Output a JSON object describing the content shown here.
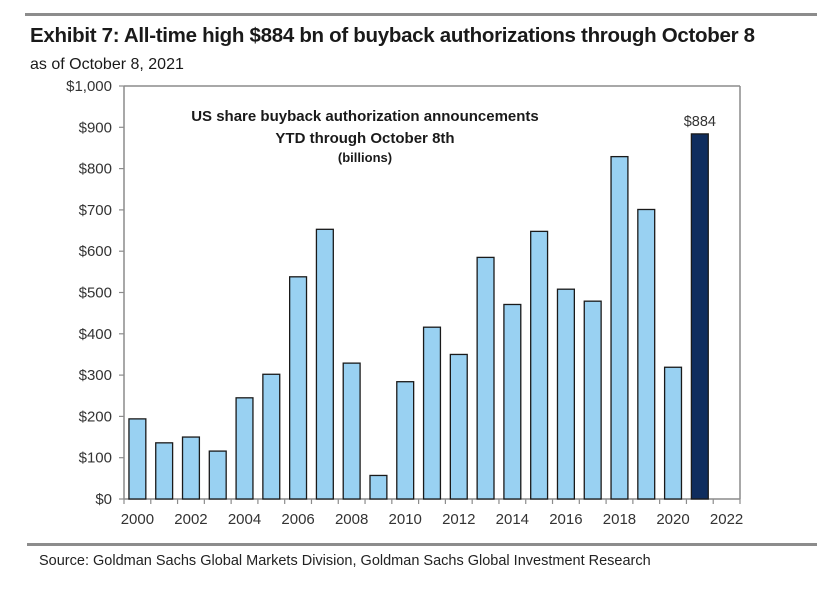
{
  "header": {
    "title": "Exhibit 7: All-time high $884 bn of buyback authorizations through October 8",
    "subtitle": "as of October 8, 2021"
  },
  "footer": {
    "source": "Source: Goldman Sachs Global Markets Division, Goldman Sachs Global Investment Research"
  },
  "colors": {
    "bar": "#99d1f2",
    "highlight_bar": "#0f2d5e",
    "bar_outline": "#1a1a1a",
    "axis": "#8c8c8c"
  },
  "chart_data": {
    "type": "bar",
    "title": "US share buyback authorization announcements",
    "title_lines": [
      "US share buyback authorization announcements",
      "YTD through October 8th",
      "(billions)"
    ],
    "xlabel": "",
    "ylabel": "",
    "categories": [
      "2000",
      "2001",
      "2002",
      "2003",
      "2004",
      "2005",
      "2006",
      "2007",
      "2008",
      "2009",
      "2010",
      "2011",
      "2012",
      "2013",
      "2014",
      "2015",
      "2016",
      "2017",
      "2018",
      "2019",
      "2020",
      "2021",
      "2022"
    ],
    "values": [
      194,
      136,
      150,
      116,
      245,
      302,
      538,
      653,
      329,
      57,
      284,
      416,
      350,
      585,
      471,
      648,
      508,
      479,
      829,
      701,
      319,
      884,
      null
    ],
    "highlight_category": "2021",
    "annotations": [
      {
        "category": "2021",
        "text": "$884"
      }
    ],
    "x_tick_labels": [
      "2000",
      "2002",
      "2004",
      "2006",
      "2008",
      "2010",
      "2012",
      "2014",
      "2016",
      "2018",
      "2020",
      "2022"
    ],
    "y_tick_labels": [
      "$0",
      "$100",
      "$200",
      "$300",
      "$400",
      "$500",
      "$600",
      "$700",
      "$800",
      "$900",
      "$1,000"
    ],
    "y_ticks": [
      0,
      100,
      200,
      300,
      400,
      500,
      600,
      700,
      800,
      900,
      1000
    ],
    "ylim": [
      0,
      1000
    ],
    "grid": false,
    "legend": "none"
  }
}
